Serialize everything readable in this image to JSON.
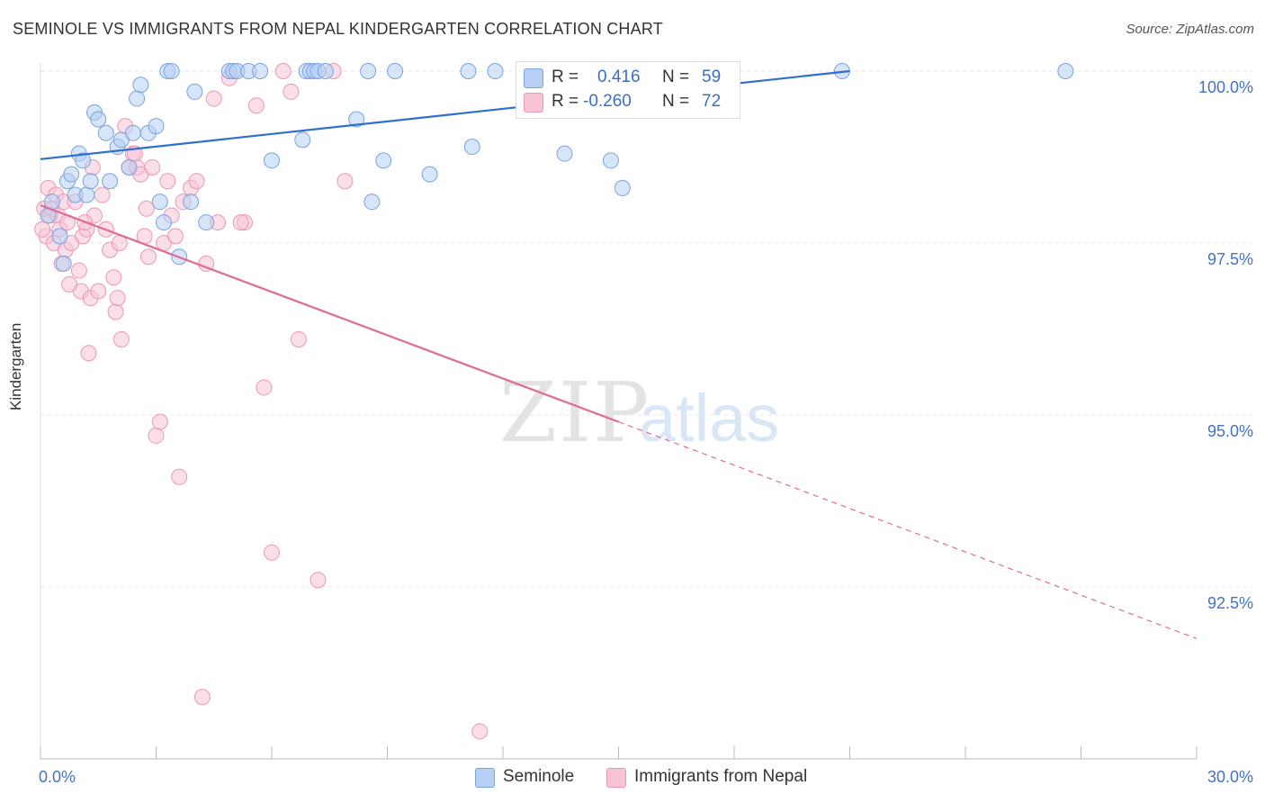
{
  "title": "SEMINOLE VS IMMIGRANTS FROM NEPAL KINDERGARTEN CORRELATION CHART",
  "source": "Source: ZipAtlas.com",
  "watermark": {
    "zip": "ZIP",
    "atlas": "atlas"
  },
  "legend_top": {
    "r_label": "R =",
    "n_label": "N =",
    "rows": [
      {
        "r": "0.416",
        "n": "59"
      },
      {
        "r": "-0.260",
        "n": "72"
      }
    ]
  },
  "colors": {
    "seminole_fill": "#b7cff2",
    "seminole_stroke": "#7aa3e0",
    "seminole_line": "#2f6fcf",
    "nepal_fill": "#f7c4d5",
    "nepal_stroke": "#ec97b6",
    "nepal_line": "#e06a95",
    "tick_label": "#4472c4"
  },
  "chart_data": {
    "type": "scatter",
    "title": "SEMINOLE VS IMMIGRANTS FROM NEPAL KINDERGARTEN CORRELATION CHART",
    "xlabel": "",
    "ylabel": "Kindergarten",
    "xlim": [
      0,
      30
    ],
    "ylim": [
      90.2,
      100.3
    ],
    "x_tick_labels": [
      "0.0%",
      "30.0%"
    ],
    "y_ticks": [
      92.5,
      95.0,
      97.5,
      100.0
    ],
    "y_tick_labels": [
      "92.5%",
      "95.0%",
      "97.5%",
      "100.0%"
    ],
    "grid": true,
    "legend_position": "bottom",
    "series": [
      {
        "name": "Seminole",
        "r": 0.416,
        "n": 59,
        "trend": {
          "x": [
            0,
            21.0
          ],
          "y": [
            98.72,
            100.0
          ],
          "dashed_to": null
        },
        "points": [
          [
            0.2,
            97.9
          ],
          [
            0.3,
            98.1
          ],
          [
            0.5,
            97.6
          ],
          [
            0.6,
            97.2
          ],
          [
            0.7,
            98.4
          ],
          [
            0.8,
            98.5
          ],
          [
            0.9,
            98.2
          ],
          [
            1.0,
            98.8
          ],
          [
            1.1,
            98.7
          ],
          [
            1.2,
            98.2
          ],
          [
            1.3,
            98.4
          ],
          [
            1.4,
            99.4
          ],
          [
            1.5,
            99.3
          ],
          [
            1.7,
            99.1
          ],
          [
            1.8,
            98.4
          ],
          [
            2.0,
            98.9
          ],
          [
            2.1,
            99.0
          ],
          [
            2.3,
            98.6
          ],
          [
            2.4,
            99.1
          ],
          [
            2.5,
            99.6
          ],
          [
            2.6,
            99.8
          ],
          [
            2.8,
            99.1
          ],
          [
            3.0,
            99.2
          ],
          [
            3.1,
            98.1
          ],
          [
            3.2,
            97.8
          ],
          [
            3.3,
            100.0
          ],
          [
            3.4,
            100.0
          ],
          [
            3.6,
            97.3
          ],
          [
            3.9,
            98.1
          ],
          [
            4.0,
            99.7
          ],
          [
            4.3,
            97.8
          ],
          [
            4.9,
            100.0
          ],
          [
            5.0,
            100.0
          ],
          [
            5.1,
            100.0
          ],
          [
            5.4,
            100.0
          ],
          [
            5.7,
            100.0
          ],
          [
            6.0,
            98.7
          ],
          [
            6.8,
            99.0
          ],
          [
            6.9,
            100.0
          ],
          [
            7.0,
            100.0
          ],
          [
            7.1,
            100.0
          ],
          [
            7.2,
            100.0
          ],
          [
            7.4,
            100.0
          ],
          [
            8.2,
            99.3
          ],
          [
            8.5,
            100.0
          ],
          [
            8.6,
            98.1
          ],
          [
            8.9,
            98.7
          ],
          [
            9.2,
            100.0
          ],
          [
            10.1,
            98.5
          ],
          [
            11.1,
            100.0
          ],
          [
            11.2,
            98.9
          ],
          [
            11.8,
            100.0
          ],
          [
            13.2,
            100.0
          ],
          [
            13.6,
            98.8
          ],
          [
            14.8,
            98.7
          ],
          [
            15.1,
            98.3
          ],
          [
            15.6,
            100.0
          ],
          [
            20.8,
            100.0
          ],
          [
            26.6,
            100.0
          ]
        ]
      },
      {
        "name": "Immigrants from Nepal",
        "r": -0.26,
        "n": 72,
        "trend": {
          "x": [
            0,
            15.0
          ],
          "y": [
            98.05,
            94.9
          ],
          "dashed_to": [
            30.0,
            91.75
          ]
        },
        "points": [
          [
            0.1,
            98.0
          ],
          [
            0.15,
            97.6
          ],
          [
            0.2,
            98.3
          ],
          [
            0.25,
            97.9
          ],
          [
            0.3,
            98.0
          ],
          [
            0.35,
            97.5
          ],
          [
            0.4,
            98.2
          ],
          [
            0.45,
            97.9
          ],
          [
            0.5,
            97.7
          ],
          [
            0.6,
            98.1
          ],
          [
            0.65,
            97.4
          ],
          [
            0.7,
            97.8
          ],
          [
            0.8,
            97.5
          ],
          [
            0.9,
            98.1
          ],
          [
            1.0,
            97.1
          ],
          [
            1.05,
            96.8
          ],
          [
            1.1,
            97.6
          ],
          [
            1.2,
            97.7
          ],
          [
            1.25,
            95.9
          ],
          [
            1.3,
            96.7
          ],
          [
            1.4,
            97.9
          ],
          [
            1.5,
            96.8
          ],
          [
            1.6,
            98.2
          ],
          [
            1.7,
            97.7
          ],
          [
            1.8,
            97.4
          ],
          [
            1.9,
            97.0
          ],
          [
            1.95,
            96.5
          ],
          [
            2.0,
            96.7
          ],
          [
            2.1,
            96.1
          ],
          [
            2.2,
            99.2
          ],
          [
            2.3,
            98.6
          ],
          [
            2.4,
            98.8
          ],
          [
            2.5,
            98.6
          ],
          [
            2.6,
            98.5
          ],
          [
            2.7,
            97.6
          ],
          [
            2.8,
            97.3
          ],
          [
            2.9,
            98.6
          ],
          [
            3.0,
            94.7
          ],
          [
            3.1,
            94.9
          ],
          [
            3.2,
            97.5
          ],
          [
            3.4,
            97.9
          ],
          [
            3.5,
            97.6
          ],
          [
            3.7,
            98.1
          ],
          [
            3.9,
            98.3
          ],
          [
            4.2,
            90.9
          ],
          [
            4.3,
            97.2
          ],
          [
            4.5,
            99.6
          ],
          [
            4.9,
            99.9
          ],
          [
            5.3,
            97.8
          ],
          [
            5.6,
            99.5
          ],
          [
            5.8,
            95.4
          ],
          [
            6.0,
            93.0
          ],
          [
            6.3,
            100.0
          ],
          [
            6.5,
            99.7
          ],
          [
            6.7,
            96.1
          ],
          [
            7.2,
            92.6
          ],
          [
            7.6,
            100.0
          ],
          [
            7.9,
            98.4
          ],
          [
            11.4,
            90.4
          ],
          [
            0.55,
            97.2
          ],
          [
            1.15,
            97.8
          ],
          [
            2.05,
            97.5
          ],
          [
            2.45,
            98.8
          ],
          [
            3.3,
            98.4
          ],
          [
            3.6,
            94.1
          ],
          [
            4.05,
            98.4
          ],
          [
            4.6,
            97.8
          ],
          [
            5.2,
            97.8
          ],
          [
            0.75,
            96.9
          ],
          [
            1.35,
            98.6
          ],
          [
            2.75,
            98.0
          ],
          [
            0.05,
            97.7
          ]
        ]
      }
    ]
  }
}
